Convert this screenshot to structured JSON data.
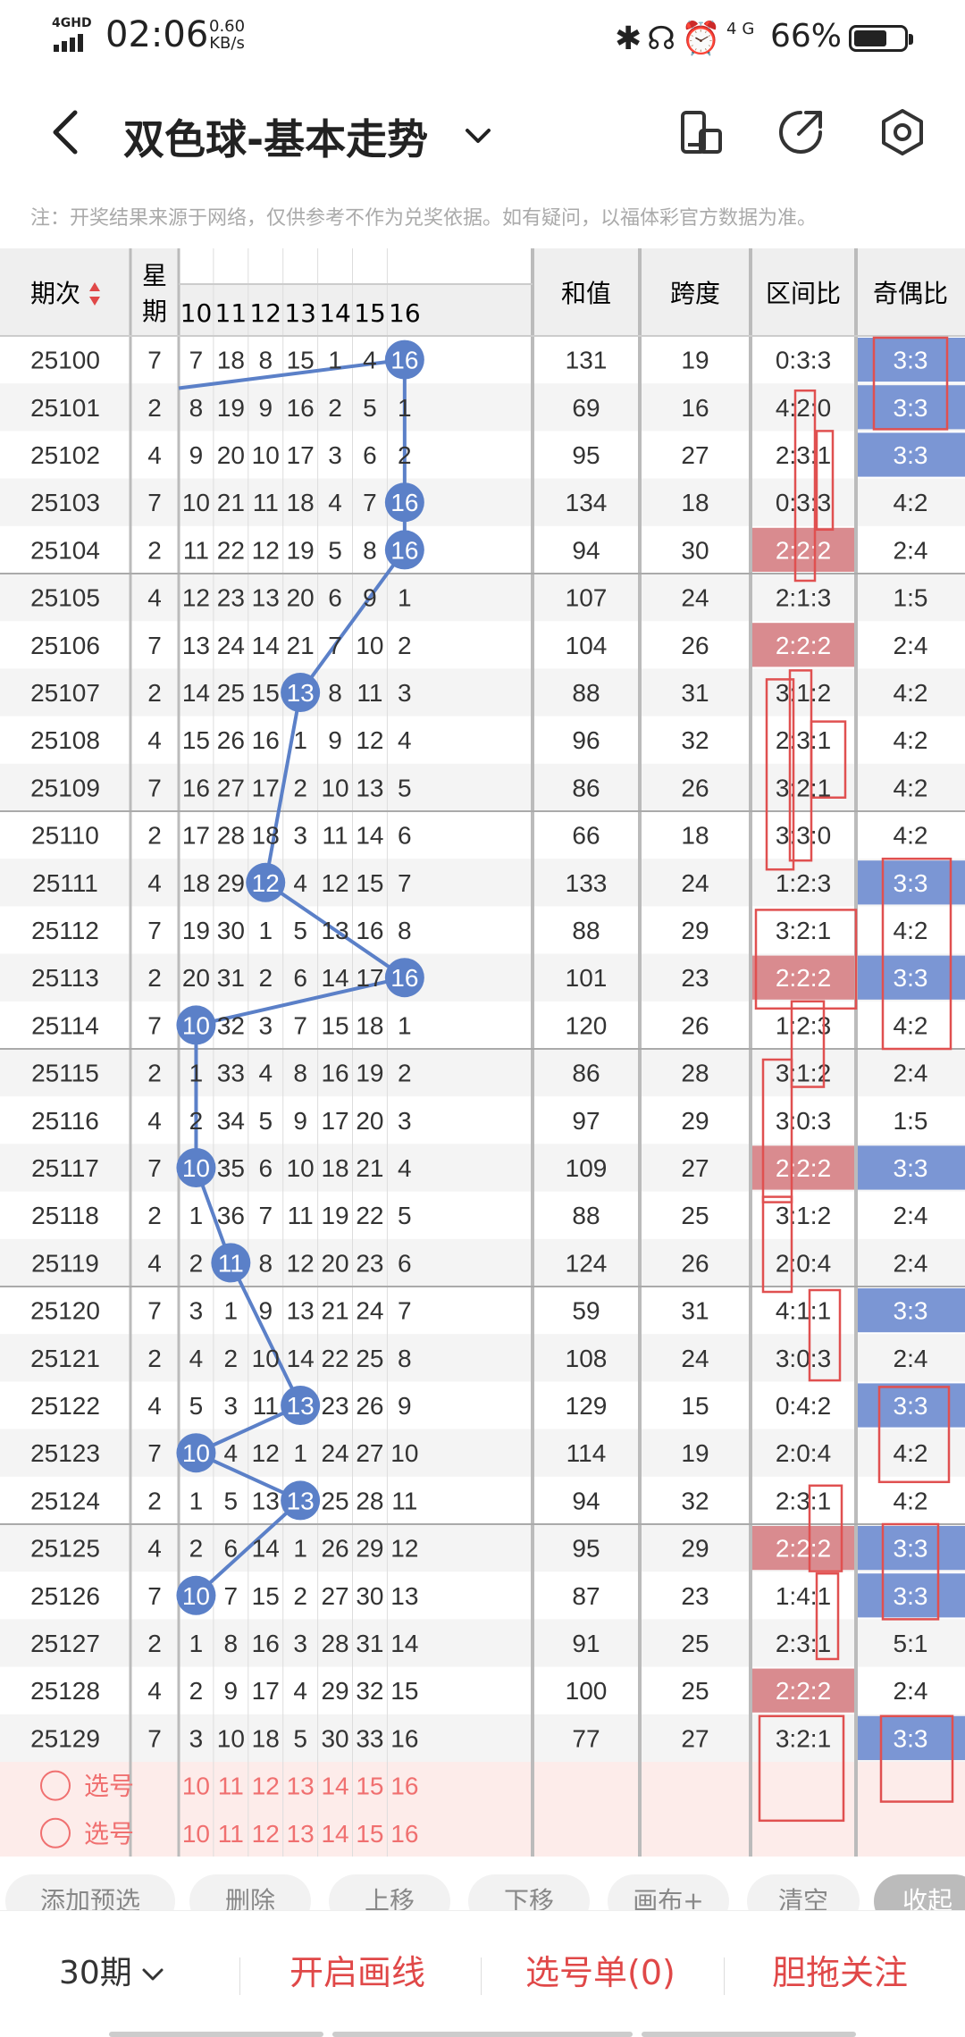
{
  "status_bar": {
    "network": "4GHD",
    "time": "02:06",
    "speed_value": "0.60",
    "speed_unit": "KB/s",
    "net2": "4G",
    "battery_percent": "66%",
    "battery_level": 0.66
  },
  "header": {
    "title": "双色球-基本走势"
  },
  "notice": "注：开奖结果来源于网络，仅供参考不作为兑奖依据。如有疑问，以福体彩官方数据为准。",
  "table": {
    "col_headers": {
      "period": "期次",
      "weekday": "星期",
      "sum": "和值",
      "span": "跨度",
      "zone_ratio": "区间比",
      "odd_even": "奇偶比"
    },
    "position_headers": [
      "10",
      "11",
      "12",
      "13",
      "14",
      "15",
      "16"
    ],
    "rows": [
      {
        "period": "25100",
        "weekday": "7",
        "nums": [
          "7",
          "18",
          "8",
          "15",
          "1",
          "4",
          "16"
        ],
        "hit": "16",
        "sum": "131",
        "span": "19",
        "zone": "0:3:3",
        "oe": "3:3",
        "zone_hl": false,
        "oe_hl": true
      },
      {
        "period": "25101",
        "weekday": "2",
        "nums": [
          "8",
          "19",
          "9",
          "16",
          "2",
          "5",
          "1"
        ],
        "hit": null,
        "sum": "69",
        "span": "16",
        "zone": "4:2:0",
        "oe": "3:3",
        "zone_hl": false,
        "oe_hl": true
      },
      {
        "period": "25102",
        "weekday": "4",
        "nums": [
          "9",
          "20",
          "10",
          "17",
          "3",
          "6",
          "2"
        ],
        "hit": null,
        "sum": "95",
        "span": "27",
        "zone": "2:3:1",
        "oe": "3:3",
        "zone_hl": false,
        "oe_hl": true
      },
      {
        "period": "25103",
        "weekday": "7",
        "nums": [
          "10",
          "21",
          "11",
          "18",
          "4",
          "7",
          "16"
        ],
        "hit": "16",
        "sum": "134",
        "span": "18",
        "zone": "0:3:3",
        "oe": "4:2",
        "zone_hl": false,
        "oe_hl": false
      },
      {
        "period": "25104",
        "weekday": "2",
        "nums": [
          "11",
          "22",
          "12",
          "19",
          "5",
          "8",
          "16"
        ],
        "hit": "16",
        "sum": "94",
        "span": "30",
        "zone": "2:2:2",
        "oe": "2:4",
        "zone_hl": true,
        "oe_hl": false
      },
      {
        "period": "25105",
        "weekday": "4",
        "nums": [
          "12",
          "23",
          "13",
          "20",
          "6",
          "9",
          "1"
        ],
        "hit": null,
        "sum": "107",
        "span": "24",
        "zone": "2:1:3",
        "oe": "1:5",
        "zone_hl": false,
        "oe_hl": false
      },
      {
        "period": "25106",
        "weekday": "7",
        "nums": [
          "13",
          "24",
          "14",
          "21",
          "7",
          "10",
          "2"
        ],
        "hit": null,
        "sum": "104",
        "span": "26",
        "zone": "2:2:2",
        "oe": "2:4",
        "zone_hl": true,
        "oe_hl": false
      },
      {
        "period": "25107",
        "weekday": "2",
        "nums": [
          "14",
          "25",
          "15",
          "13",
          "8",
          "11",
          "3"
        ],
        "hit": "13",
        "sum": "88",
        "span": "31",
        "zone": "3:1:2",
        "oe": "4:2",
        "zone_hl": false,
        "oe_hl": false
      },
      {
        "period": "25108",
        "weekday": "4",
        "nums": [
          "15",
          "26",
          "16",
          "1",
          "9",
          "12",
          "4"
        ],
        "hit": null,
        "sum": "96",
        "span": "32",
        "zone": "2:3:1",
        "oe": "4:2",
        "zone_hl": false,
        "oe_hl": false
      },
      {
        "period": "25109",
        "weekday": "7",
        "nums": [
          "16",
          "27",
          "17",
          "2",
          "10",
          "13",
          "5"
        ],
        "hit": null,
        "sum": "86",
        "span": "26",
        "zone": "3:2:1",
        "oe": "4:2",
        "zone_hl": false,
        "oe_hl": false
      },
      {
        "period": "25110",
        "weekday": "2",
        "nums": [
          "17",
          "28",
          "18",
          "3",
          "11",
          "14",
          "6"
        ],
        "hit": null,
        "sum": "66",
        "span": "18",
        "zone": "3:3:0",
        "oe": "4:2",
        "zone_hl": false,
        "oe_hl": false
      },
      {
        "period": "25111",
        "weekday": "4",
        "nums": [
          "18",
          "29",
          "12",
          "4",
          "12",
          "15",
          "7"
        ],
        "hit": "12",
        "sum": "133",
        "span": "24",
        "zone": "1:2:3",
        "oe": "3:3",
        "zone_hl": false,
        "oe_hl": true
      },
      {
        "period": "25112",
        "weekday": "7",
        "nums": [
          "19",
          "30",
          "1",
          "5",
          "13",
          "16",
          "8"
        ],
        "hit": null,
        "sum": "88",
        "span": "29",
        "zone": "3:2:1",
        "oe": "4:2",
        "zone_hl": false,
        "oe_hl": false
      },
      {
        "period": "25113",
        "weekday": "2",
        "nums": [
          "20",
          "31",
          "2",
          "6",
          "14",
          "17",
          "16"
        ],
        "hit": "16",
        "sum": "101",
        "span": "23",
        "zone": "2:2:2",
        "oe": "3:3",
        "zone_hl": true,
        "oe_hl": true
      },
      {
        "period": "25114",
        "weekday": "7",
        "nums": [
          "10",
          "32",
          "3",
          "7",
          "15",
          "18",
          "1"
        ],
        "hit": "10",
        "sum": "120",
        "span": "26",
        "zone": "1:2:3",
        "oe": "4:2",
        "zone_hl": false,
        "oe_hl": false
      },
      {
        "period": "25115",
        "weekday": "2",
        "nums": [
          "1",
          "33",
          "4",
          "8",
          "16",
          "19",
          "2"
        ],
        "hit": null,
        "sum": "86",
        "span": "28",
        "zone": "3:1:2",
        "oe": "2:4",
        "zone_hl": false,
        "oe_hl": false
      },
      {
        "period": "25116",
        "weekday": "4",
        "nums": [
          "2",
          "34",
          "5",
          "9",
          "17",
          "20",
          "3"
        ],
        "hit": null,
        "sum": "97",
        "span": "29",
        "zone": "3:0:3",
        "oe": "1:5",
        "zone_hl": false,
        "oe_hl": false
      },
      {
        "period": "25117",
        "weekday": "7",
        "nums": [
          "10",
          "35",
          "6",
          "10",
          "18",
          "21",
          "4"
        ],
        "hit": "10",
        "sum": "109",
        "span": "27",
        "zone": "2:2:2",
        "oe": "3:3",
        "zone_hl": true,
        "oe_hl": true
      },
      {
        "period": "25118",
        "weekday": "2",
        "nums": [
          "1",
          "36",
          "7",
          "11",
          "19",
          "22",
          "5"
        ],
        "hit": null,
        "sum": "88",
        "span": "25",
        "zone": "3:1:2",
        "oe": "2:4",
        "zone_hl": false,
        "oe_hl": false
      },
      {
        "period": "25119",
        "weekday": "4",
        "nums": [
          "2",
          "11",
          "8",
          "12",
          "20",
          "23",
          "6"
        ],
        "hit": "11",
        "sum": "124",
        "span": "26",
        "zone": "2:0:4",
        "oe": "2:4",
        "zone_hl": false,
        "oe_hl": false
      },
      {
        "period": "25120",
        "weekday": "7",
        "nums": [
          "3",
          "1",
          "9",
          "13",
          "21",
          "24",
          "7"
        ],
        "hit": null,
        "sum": "59",
        "span": "31",
        "zone": "4:1:1",
        "oe": "3:3",
        "zone_hl": false,
        "oe_hl": true
      },
      {
        "period": "25121",
        "weekday": "2",
        "nums": [
          "4",
          "2",
          "10",
          "14",
          "22",
          "25",
          "8"
        ],
        "hit": null,
        "sum": "108",
        "span": "24",
        "zone": "3:0:3",
        "oe": "2:4",
        "zone_hl": false,
        "oe_hl": false
      },
      {
        "period": "25122",
        "weekday": "4",
        "nums": [
          "5",
          "3",
          "11",
          "13",
          "23",
          "26",
          "9"
        ],
        "hit": "13",
        "sum": "129",
        "span": "15",
        "zone": "0:4:2",
        "oe": "3:3",
        "zone_hl": false,
        "oe_hl": true
      },
      {
        "period": "25123",
        "weekday": "7",
        "nums": [
          "10",
          "4",
          "12",
          "1",
          "24",
          "27",
          "10"
        ],
        "hit": "10",
        "sum": "114",
        "span": "19",
        "zone": "2:0:4",
        "oe": "4:2",
        "zone_hl": false,
        "oe_hl": false
      },
      {
        "period": "25124",
        "weekday": "2",
        "nums": [
          "1",
          "5",
          "13",
          "13",
          "25",
          "28",
          "11"
        ],
        "hit": "13",
        "sum": "94",
        "span": "32",
        "zone": "2:3:1",
        "oe": "4:2",
        "zone_hl": false,
        "oe_hl": false
      },
      {
        "period": "25125",
        "weekday": "4",
        "nums": [
          "2",
          "6",
          "14",
          "1",
          "26",
          "29",
          "12"
        ],
        "hit": null,
        "sum": "95",
        "span": "29",
        "zone": "2:2:2",
        "oe": "3:3",
        "zone_hl": true,
        "oe_hl": true
      },
      {
        "period": "25126",
        "weekday": "7",
        "nums": [
          "10",
          "7",
          "15",
          "2",
          "27",
          "30",
          "13"
        ],
        "hit": "10",
        "sum": "87",
        "span": "23",
        "zone": "1:4:1",
        "oe": "3:3",
        "zone_hl": false,
        "oe_hl": true
      },
      {
        "period": "25127",
        "weekday": "2",
        "nums": [
          "1",
          "8",
          "16",
          "3",
          "28",
          "31",
          "14"
        ],
        "hit": null,
        "sum": "91",
        "span": "25",
        "zone": "2:3:1",
        "oe": "5:1",
        "zone_hl": false,
        "oe_hl": false
      },
      {
        "period": "25128",
        "weekday": "4",
        "nums": [
          "2",
          "9",
          "17",
          "4",
          "29",
          "32",
          "15"
        ],
        "hit": null,
        "sum": "100",
        "span": "25",
        "zone": "2:2:2",
        "oe": "2:4",
        "zone_hl": true,
        "oe_hl": false
      },
      {
        "period": "25129",
        "weekday": "7",
        "nums": [
          "3",
          "10",
          "18",
          "5",
          "30",
          "33",
          "16"
        ],
        "hit": null,
        "sum": "77",
        "span": "27",
        "zone": "3:2:1",
        "oe": "3:3",
        "zone_hl": false,
        "oe_hl": true
      }
    ],
    "select_rows": [
      {
        "label": "选号",
        "nums": [
          "10",
          "11",
          "12",
          "13",
          "14",
          "15",
          "16"
        ]
      },
      {
        "label": "选号",
        "nums": [
          "10",
          "11",
          "12",
          "13",
          "14",
          "15",
          "16"
        ]
      }
    ]
  },
  "actions": [
    "添加预选",
    "删除",
    "上移",
    "下移",
    "画布+",
    "清空",
    "收起"
  ],
  "bottom_bar": {
    "period": "30期",
    "draw_lines": "开启画线",
    "selection": "选号单(0)",
    "follow": "胆拖关注"
  },
  "colors": {
    "ball": "#5b80c8",
    "hl_blue": "#7b96d4",
    "hl_red": "#d98b8f",
    "annot_red": "#e05050",
    "header_bg": "#efefef",
    "row_alt": "#f4f4f4"
  }
}
